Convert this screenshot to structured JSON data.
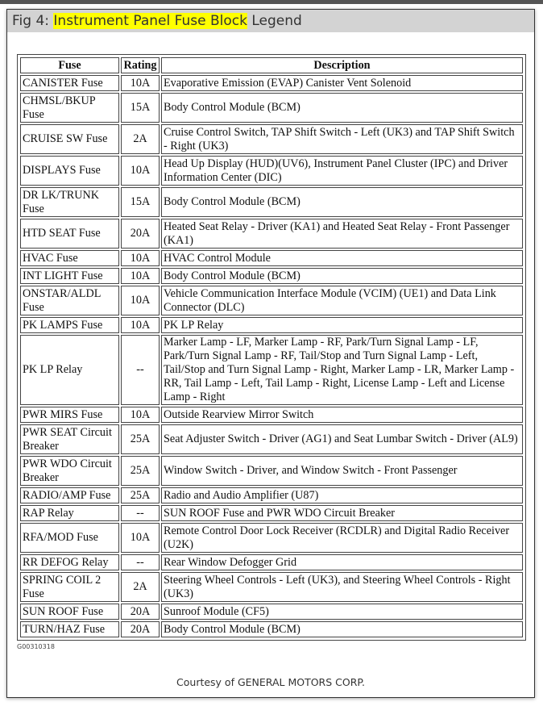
{
  "title": {
    "prefix": "Fig 4: ",
    "highlight": "Instrument Panel Fuse Block",
    "suffix": " Legend"
  },
  "table": {
    "headers": [
      "Fuse",
      "Rating",
      "Description"
    ],
    "rows": [
      {
        "fuse": "CANISTER Fuse",
        "rating": "10A",
        "description": "Evaporative Emission (EVAP) Canister Vent Solenoid"
      },
      {
        "fuse": "CHMSL/BKUP Fuse",
        "rating": "15A",
        "description": "Body Control Module (BCM)"
      },
      {
        "fuse": "CRUISE SW Fuse",
        "rating": "2A",
        "description": "Cruise Control Switch, TAP Shift Switch - Left (UK3) and TAP Shift Switch - Right (UK3)"
      },
      {
        "fuse": "DISPLAYS Fuse",
        "rating": "10A",
        "description": "Head Up Display (HUD)(UV6), Instrument Panel Cluster (IPC) and Driver Information Center (DIC)"
      },
      {
        "fuse": "DR LK/TRUNK Fuse",
        "rating": "15A",
        "description": "Body Control Module (BCM)"
      },
      {
        "fuse": "HTD SEAT Fuse",
        "rating": "20A",
        "description": "Heated Seat Relay - Driver (KA1) and Heated Seat Relay - Front Passenger (KA1)"
      },
      {
        "fuse": "HVAC Fuse",
        "rating": "10A",
        "description": "HVAC Control Module"
      },
      {
        "fuse": "INT LIGHT Fuse",
        "rating": "10A",
        "description": "Body Control Module (BCM)"
      },
      {
        "fuse": "ONSTAR/ALDL Fuse",
        "rating": "10A",
        "description": "Vehicle Communication Interface Module (VCIM) (UE1) and Data Link Connector (DLC)"
      },
      {
        "fuse": "PK LAMPS Fuse",
        "rating": "10A",
        "description": "PK LP Relay"
      },
      {
        "fuse": "PK LP Relay",
        "rating": "--",
        "description": "Marker Lamp - LF, Marker Lamp - RF, Park/Turn Signal Lamp - LF, Park/Turn Signal Lamp - RF, Tail/Stop and Turn Signal Lamp - Left, Tail/Stop and Turn Signal Lamp - Right, Marker Lamp - LR, Marker Lamp - RR, Tail Lamp - Left, Tail Lamp - Right, License Lamp - Left and License Lamp - Right"
      },
      {
        "fuse": "PWR MIRS Fuse",
        "rating": "10A",
        "description": "Outside Rearview Mirror Switch"
      },
      {
        "fuse": "PWR SEAT Circuit Breaker",
        "rating": "25A",
        "description": "Seat Adjuster Switch - Driver (AG1) and Seat Lumbar Switch - Driver (AL9)"
      },
      {
        "fuse": "PWR WDO Circuit Breaker",
        "rating": "25A",
        "description": "Window Switch - Driver, and Window Switch - Front Passenger"
      },
      {
        "fuse": "RADIO/AMP Fuse",
        "rating": "25A",
        "description": "Radio and Audio Amplifier (U87)"
      },
      {
        "fuse": "RAP Relay",
        "rating": "--",
        "description": "SUN ROOF Fuse and PWR WDO Circuit Breaker"
      },
      {
        "fuse": "RFA/MOD Fuse",
        "rating": "10A",
        "description": "Remote Control Door Lock Receiver (RCDLR) and Digital Radio Receiver (U2K)"
      },
      {
        "fuse": "RR DEFOG Relay",
        "rating": "--",
        "description": "Rear Window Defogger Grid"
      },
      {
        "fuse": "SPRING COIL 2 Fuse",
        "rating": "2A",
        "description": "Steering Wheel Controls - Left (UK3), and Steering Wheel Controls - Right (UK3)"
      },
      {
        "fuse": "SUN ROOF Fuse",
        "rating": "20A",
        "description": "Sunroof Module (CF5)"
      },
      {
        "fuse": "TURN/HAZ Fuse",
        "rating": "20A",
        "description": "Body Control Module (BCM)"
      }
    ]
  },
  "figure_code": "G00310318",
  "courtesy": "Courtesy of GENERAL MOTORS CORP.",
  "colors": {
    "highlight": "#ffff00",
    "title_bar": "#d3d3d3"
  }
}
